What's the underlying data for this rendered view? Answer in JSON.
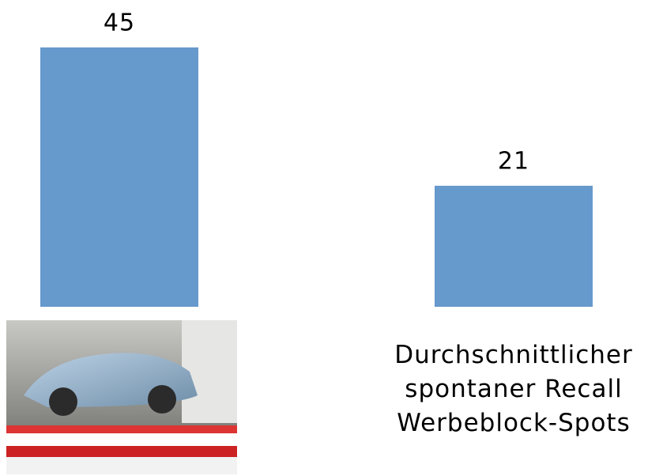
{
  "chart_data": {
    "type": "bar",
    "categories": [
      null,
      "Durchschnittlicher spontaner Recall Werbeblock-Spots"
    ],
    "values": [
      45,
      21
    ],
    "color": "#6699cc",
    "ylim": [
      0,
      45
    ]
  }
}
